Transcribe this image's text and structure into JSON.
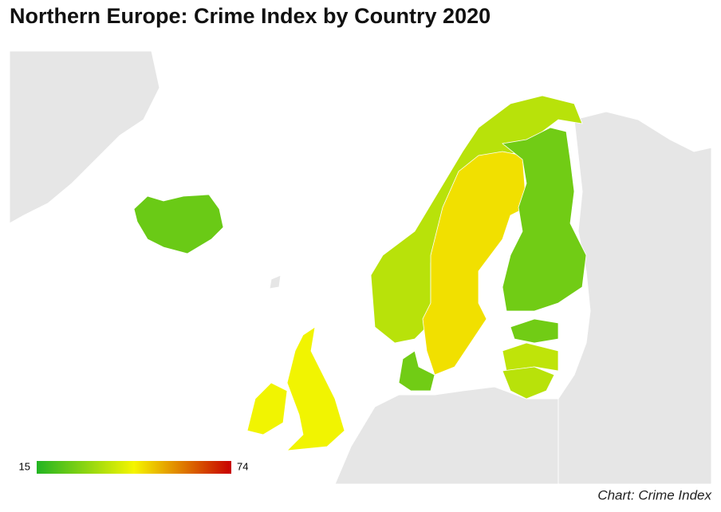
{
  "chart_data": {
    "type": "choropleth",
    "title": "Northern Europe: Crime Index by Country 2020",
    "source": "Chart: Crime Index",
    "scale": {
      "min": 15,
      "max": 74,
      "colors": [
        "#22b422",
        "#f5f500",
        "#c80000"
      ]
    },
    "values": [
      25,
      36,
      47,
      26,
      26,
      26,
      37,
      36,
      44,
      44
    ]
  }
}
